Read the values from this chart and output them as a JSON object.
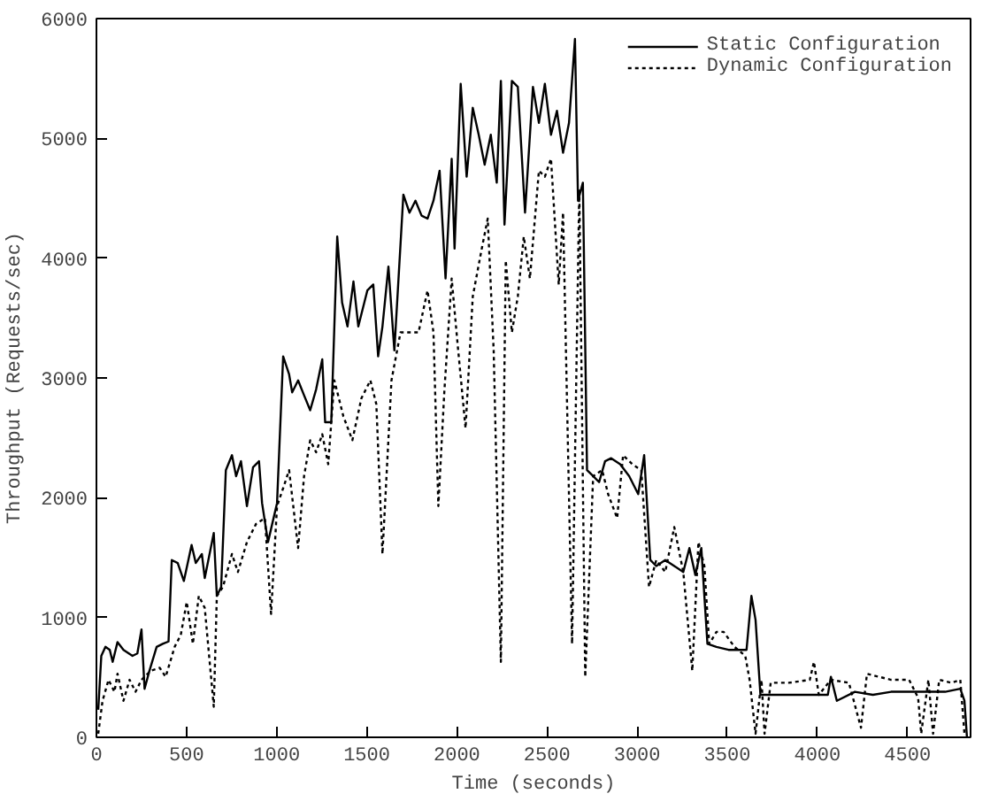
{
  "chart_data": {
    "type": "line",
    "xlabel": "Time (seconds)",
    "ylabel": "Throughput (Requests/sec)",
    "xlim": [
      0,
      4850
    ],
    "ylim": [
      0,
      6000
    ],
    "xticks": [
      0,
      500,
      1000,
      1500,
      2000,
      2500,
      3000,
      3500,
      4000,
      4500
    ],
    "yticks": [
      0,
      1000,
      2000,
      3000,
      4000,
      5000,
      6000
    ],
    "grid": false,
    "legend": "top right",
    "marker": "none",
    "series": [
      {
        "name": "Static Configuration",
        "color": "#000000",
        "line_style": "solid",
        "x": [
          10,
          27,
          50,
          74,
          90,
          117,
          150,
          200,
          227,
          250,
          267,
          294,
          334,
          368,
          400,
          418,
          451,
          485,
          528,
          551,
          585,
          601,
          651,
          668,
          692,
          718,
          752,
          775,
          802,
          835,
          869,
          902,
          919,
          952,
          975,
          1002,
          1036,
          1069,
          1086,
          1119,
          1152,
          1186,
          1219,
          1253,
          1269,
          1303,
          1336,
          1363,
          1393,
          1426,
          1453,
          1503,
          1536,
          1563,
          1587,
          1620,
          1653,
          1703,
          1737,
          1770,
          1804,
          1837,
          1870,
          1904,
          1937,
          1971,
          1987,
          2021,
          2054,
          2088,
          2121,
          2154,
          2188,
          2221,
          2244,
          2264,
          2305,
          2338,
          2378,
          2422,
          2455,
          2488,
          2522,
          2555,
          2589,
          2622,
          2655,
          2672,
          2699,
          2722,
          2756,
          2789,
          2822,
          2856,
          2906,
          2956,
          3006,
          3039,
          3073,
          3106,
          3156,
          3206,
          3256,
          3290,
          3323,
          3356,
          3390,
          3440,
          3507,
          3574,
          3607,
          3634,
          3657,
          3684,
          3741,
          3841,
          3974,
          4058,
          4075,
          4108,
          4208,
          4308,
          4409,
          4509,
          4609,
          4709,
          4793,
          4816,
          4830
        ],
        "values": [
          230,
          680,
          755,
          730,
          630,
          795,
          730,
          680,
          700,
          900,
          405,
          555,
          755,
          780,
          800,
          1480,
          1455,
          1305,
          1605,
          1455,
          1530,
          1330,
          1705,
          1180,
          1255,
          2230,
          2355,
          2180,
          2305,
          1930,
          2255,
          2305,
          1955,
          1630,
          1780,
          1955,
          3180,
          3030,
          2880,
          2980,
          2855,
          2730,
          2905,
          3155,
          2630,
          2630,
          4180,
          3630,
          3430,
          3805,
          3430,
          3730,
          3780,
          3180,
          3430,
          3930,
          3230,
          4530,
          4380,
          4480,
          4355,
          4330,
          4480,
          4730,
          3830,
          4830,
          4080,
          5455,
          4680,
          5255,
          5030,
          4780,
          5030,
          4630,
          5480,
          4280,
          5480,
          5430,
          4380,
          5430,
          5130,
          5455,
          5030,
          5230,
          4880,
          5130,
          5830,
          4480,
          4630,
          2230,
          2180,
          2130,
          2305,
          2330,
          2280,
          2180,
          2030,
          2355,
          1480,
          1430,
          1480,
          1430,
          1380,
          1580,
          1355,
          1580,
          780,
          755,
          730,
          730,
          730,
          1180,
          980,
          355,
          355,
          355,
          355,
          355,
          505,
          305,
          380,
          355,
          380,
          380,
          380,
          380,
          405,
          305,
          0
        ]
      },
      {
        "name": "Dynamic Configuration",
        "color": "#000000",
        "line_style": "dotted",
        "x": [
          10,
          34,
          67,
          100,
          117,
          150,
          184,
          217,
          250,
          301,
          351,
          384,
          434,
          468,
          501,
          535,
          568,
          601,
          651,
          668,
          702,
          752,
          785,
          835,
          885,
          935,
          969,
          1002,
          1036,
          1069,
          1119,
          1152,
          1186,
          1219,
          1253,
          1286,
          1320,
          1370,
          1420,
          1470,
          1520,
          1553,
          1587,
          1637,
          1687,
          1737,
          1787,
          1837,
          1870,
          1897,
          1930,
          1971,
          2004,
          2048,
          2088,
          2138,
          2171,
          2204,
          2244,
          2271,
          2305,
          2338,
          2371,
          2405,
          2455,
          2488,
          2522,
          2565,
          2589,
          2639,
          2679,
          2712,
          2756,
          2806,
          2839,
          2889,
          2922,
          2973,
          3023,
          3066,
          3106,
          3156,
          3206,
          3256,
          3306,
          3340,
          3373,
          3400,
          3440,
          3480,
          3540,
          3600,
          3624,
          3657,
          3690,
          3707,
          3741,
          3841,
          3958,
          3981,
          4008,
          4075,
          4175,
          4242,
          4275,
          4342,
          4409,
          4509,
          4559,
          4576,
          4616,
          4642,
          4676,
          4743,
          4793,
          4816
        ],
        "values": [
          30,
          305,
          480,
          380,
          530,
          305,
          480,
          380,
          480,
          555,
          580,
          505,
          755,
          855,
          1130,
          780,
          1180,
          1080,
          255,
          1180,
          1255,
          1530,
          1380,
          1630,
          1780,
          1830,
          1030,
          1930,
          2080,
          2230,
          1580,
          2180,
          2480,
          2380,
          2530,
          2280,
          2980,
          2680,
          2480,
          2830,
          2980,
          2780,
          1530,
          2980,
          3380,
          3380,
          3380,
          3730,
          3380,
          1930,
          2880,
          3830,
          3280,
          2580,
          3680,
          4080,
          4330,
          3230,
          630,
          3980,
          3380,
          3680,
          4180,
          3830,
          4730,
          4680,
          4830,
          3780,
          4380,
          780,
          4580,
          505,
          2180,
          2230,
          2030,
          1830,
          2355,
          2280,
          2230,
          1255,
          1480,
          1380,
          1755,
          1380,
          555,
          1630,
          1430,
          780,
          880,
          880,
          755,
          680,
          480,
          30,
          480,
          30,
          455,
          455,
          480,
          630,
          355,
          480,
          455,
          80,
          530,
          505,
          480,
          480,
          330,
          30,
          480,
          30,
          480,
          455,
          480,
          30
        ]
      }
    ]
  }
}
